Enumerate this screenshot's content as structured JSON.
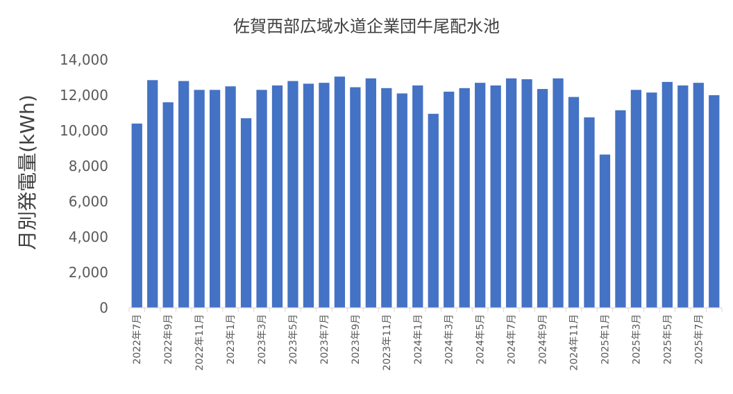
{
  "chart_data": {
    "type": "bar",
    "title": "佐賀西部広域水道企業団牛尾配水池",
    "ylabel": "月別発電量(kWh)",
    "xlabel": "",
    "ylim": [
      0,
      14000
    ],
    "yticks": [
      "0",
      "2,000",
      "4,000",
      "6,000",
      "8,000",
      "10,000",
      "12,000",
      "14,000"
    ],
    "grid": false,
    "legend": "none",
    "bar_color": "#4472C4",
    "categories": [
      "2022年7月",
      "2022年8月",
      "2022年9月",
      "2022年10月",
      "2022年11月",
      "2022年12月",
      "2023年1月",
      "2023年2月",
      "2023年3月",
      "2023年4月",
      "2023年5月",
      "2023年6月",
      "2023年7月",
      "2023年8月",
      "2023年9月",
      "2023年10月",
      "2023年11月",
      "2023年12月",
      "2024年1月",
      "2024年2月",
      "2024年3月",
      "2024年4月",
      "2024年5月",
      "2024年6月",
      "2024年7月",
      "2024年8月",
      "2024年9月",
      "2024年10月",
      "2024年11月",
      "2024年12月",
      "2025年1月",
      "2025年2月",
      "2025年3月",
      "2025年4月",
      "2025年5月",
      "2025年6月",
      "2025年7月",
      "2025年8月"
    ],
    "tick_labels": [
      "2022年7月",
      "",
      "2022年9月",
      "",
      "2022年11月",
      "",
      "2023年1月",
      "",
      "2023年3月",
      "",
      "2023年5月",
      "",
      "2023年7月",
      "",
      "2023年9月",
      "",
      "2023年11月",
      "",
      "2024年1月",
      "",
      "2024年3月",
      "",
      "2024年5月",
      "",
      "2024年7月",
      "",
      "2024年9月",
      "",
      "2024年11月",
      "",
      "2025年1月",
      "",
      "2025年3月",
      "",
      "2025年5月",
      "",
      "2025年7月",
      ""
    ],
    "values": [
      10400,
      12850,
      11600,
      12800,
      12300,
      12300,
      12500,
      10700,
      12300,
      12550,
      12800,
      12650,
      12700,
      13050,
      12450,
      12950,
      12400,
      12100,
      12550,
      10950,
      12200,
      12400,
      12700,
      12550,
      12950,
      12900,
      12350,
      12950,
      11900,
      10750,
      8650,
      11150,
      12300,
      12150,
      12750,
      12550,
      12700,
      12000
    ]
  }
}
